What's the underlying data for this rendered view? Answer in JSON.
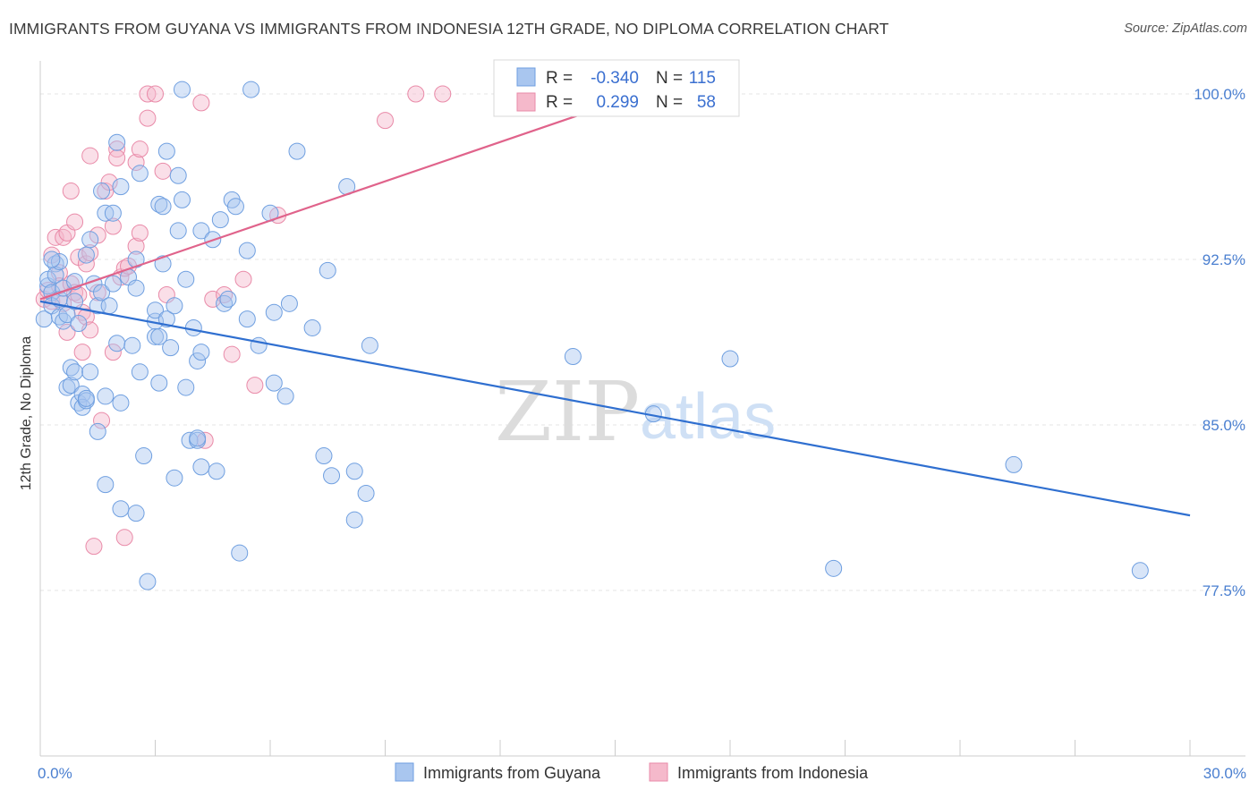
{
  "header": {
    "title": "IMMIGRANTS FROM GUYANA VS IMMIGRANTS FROM INDONESIA 12TH GRADE, NO DIPLOMA CORRELATION CHART",
    "source": "Source: ZipAtlas.com"
  },
  "watermark": {
    "zip": "ZIP",
    "atlas": "atlas"
  },
  "colors": {
    "blue_fill": "#a9c6ef",
    "blue_stroke": "#6f9fe0",
    "blue_line": "#2f6fd0",
    "pink_fill": "#f5b9cb",
    "pink_stroke": "#e98aa8",
    "pink_line": "#e0638b",
    "grid": "#e5e5e5",
    "axis_text": "#4a7fd0"
  },
  "legend": {
    "rows": [
      {
        "r_label": "R =",
        "r_value": "-0.340",
        "n_label": "N =",
        "n_value": "115"
      },
      {
        "r_label": "R =",
        "r_value": "0.299",
        "n_label": "N =",
        "n_value": "58"
      }
    ]
  },
  "bottom_legend": {
    "items": [
      {
        "label": "Immigrants from Guyana"
      },
      {
        "label": "Immigrants from Indonesia"
      }
    ]
  },
  "chart_data": {
    "type": "scatter",
    "title": "IMMIGRANTS FROM GUYANA VS IMMIGRANTS FROM INDONESIA 12TH GRADE, NO DIPLOMA CORRELATION CHART",
    "xlabel": "",
    "ylabel": "12th Grade, No Diploma",
    "xlim": [
      0,
      30
    ],
    "ylim": [
      70.0,
      101.5
    ],
    "x_tick_labels": [
      "0.0%",
      "30.0%"
    ],
    "x_ticks": [
      0,
      3,
      6,
      9,
      12,
      15,
      18,
      21,
      24,
      27,
      30
    ],
    "y_ticks": [
      77.5,
      85.0,
      92.5,
      100.0
    ],
    "y_tick_labels": [
      "77.5%",
      "85.0%",
      "92.5%",
      "100.0%"
    ],
    "grid": true,
    "legend_position": "top-center",
    "series": [
      {
        "name": "Immigrants from Guyana",
        "color": "blue",
        "R": -0.34,
        "N": 115,
        "trend": {
          "x": [
            0,
            30
          ],
          "y": [
            90.6,
            80.9
          ]
        },
        "points": [
          [
            0.1,
            89.8
          ],
          [
            0.2,
            91.3
          ],
          [
            0.2,
            91.6
          ],
          [
            0.3,
            91.0
          ],
          [
            0.3,
            90.4
          ],
          [
            0.4,
            92.3
          ],
          [
            0.4,
            91.8
          ],
          [
            0.5,
            92.4
          ],
          [
            0.5,
            90.7
          ],
          [
            0.5,
            89.9
          ],
          [
            0.6,
            89.7
          ],
          [
            0.6,
            91.2
          ],
          [
            0.7,
            90.0
          ],
          [
            0.7,
            86.7
          ],
          [
            0.8,
            86.8
          ],
          [
            0.8,
            87.6
          ],
          [
            0.9,
            87.4
          ],
          [
            0.9,
            91.5
          ],
          [
            1.0,
            86.0
          ],
          [
            1.0,
            89.6
          ],
          [
            1.1,
            86.4
          ],
          [
            1.1,
            85.8
          ],
          [
            1.2,
            86.1
          ],
          [
            1.2,
            92.7
          ],
          [
            1.3,
            93.4
          ],
          [
            1.3,
            87.4
          ],
          [
            1.4,
            91.4
          ],
          [
            1.5,
            90.4
          ],
          [
            1.5,
            84.7
          ],
          [
            1.6,
            91.0
          ],
          [
            1.6,
            95.6
          ],
          [
            1.7,
            94.6
          ],
          [
            1.7,
            86.3
          ],
          [
            1.7,
            82.3
          ],
          [
            1.8,
            90.4
          ],
          [
            1.9,
            94.6
          ],
          [
            1.9,
            91.4
          ],
          [
            2.0,
            97.8
          ],
          [
            2.0,
            88.7
          ],
          [
            2.1,
            81.2
          ],
          [
            2.1,
            86.0
          ],
          [
            2.3,
            91.7
          ],
          [
            2.4,
            88.6
          ],
          [
            2.5,
            91.2
          ],
          [
            2.5,
            92.5
          ],
          [
            2.5,
            81.0
          ],
          [
            2.6,
            96.4
          ],
          [
            2.6,
            87.4
          ],
          [
            2.7,
            83.6
          ],
          [
            2.8,
            77.9
          ],
          [
            3.0,
            89.7
          ],
          [
            3.0,
            89.0
          ],
          [
            3.0,
            90.2
          ],
          [
            3.1,
            86.9
          ],
          [
            3.1,
            95.0
          ],
          [
            3.1,
            89.0
          ],
          [
            3.2,
            92.3
          ],
          [
            3.2,
            94.9
          ],
          [
            3.3,
            89.8
          ],
          [
            3.3,
            97.4
          ],
          [
            3.4,
            88.5
          ],
          [
            3.5,
            90.4
          ],
          [
            3.5,
            82.6
          ],
          [
            3.6,
            96.3
          ],
          [
            3.6,
            93.8
          ],
          [
            3.7,
            95.2
          ],
          [
            3.8,
            91.6
          ],
          [
            3.8,
            86.7
          ],
          [
            3.9,
            84.3
          ],
          [
            4.0,
            89.4
          ],
          [
            4.1,
            87.9
          ],
          [
            4.1,
            84.3
          ],
          [
            4.2,
            88.3
          ],
          [
            4.2,
            83.1
          ],
          [
            4.2,
            93.8
          ],
          [
            4.5,
            93.4
          ],
          [
            4.6,
            82.9
          ],
          [
            4.7,
            94.3
          ],
          [
            4.8,
            90.5
          ],
          [
            4.9,
            90.7
          ],
          [
            5.0,
            95.2
          ],
          [
            5.1,
            94.9
          ],
          [
            5.2,
            79.2
          ],
          [
            5.4,
            92.9
          ],
          [
            5.4,
            89.8
          ],
          [
            5.7,
            88.6
          ],
          [
            6.0,
            94.6
          ],
          [
            6.1,
            86.9
          ],
          [
            6.1,
            90.1
          ],
          [
            6.4,
            86.3
          ],
          [
            6.5,
            90.5
          ],
          [
            6.7,
            97.4
          ],
          [
            7.1,
            89.4
          ],
          [
            7.4,
            83.6
          ],
          [
            7.5,
            92.0
          ],
          [
            7.6,
            82.7
          ],
          [
            8.0,
            95.8
          ],
          [
            8.2,
            80.7
          ],
          [
            8.2,
            82.9
          ],
          [
            8.5,
            81.9
          ],
          [
            8.6,
            88.6
          ],
          [
            13.9,
            88.1
          ],
          [
            16.0,
            85.5
          ],
          [
            18.0,
            88.0
          ],
          [
            20.7,
            78.5
          ],
          [
            25.4,
            83.2
          ],
          [
            28.7,
            78.4
          ],
          [
            0.3,
            92.5
          ],
          [
            0.9,
            90.6
          ],
          [
            2.1,
            95.8
          ],
          [
            3.7,
            100.2
          ],
          [
            5.5,
            100.2
          ],
          [
            1.2,
            86.2
          ],
          [
            4.1,
            84.4
          ]
        ]
      },
      {
        "name": "Immigrants from Indonesia",
        "color": "pink",
        "R": 0.299,
        "N": 58,
        "trend": {
          "x": [
            0,
            15.0
          ],
          "y": [
            90.7,
            99.6
          ]
        },
        "points": [
          [
            0.1,
            90.7
          ],
          [
            0.2,
            91.1
          ],
          [
            0.3,
            92.7
          ],
          [
            0.3,
            90.6
          ],
          [
            0.4,
            93.5
          ],
          [
            0.5,
            91.9
          ],
          [
            0.5,
            91.3
          ],
          [
            0.6,
            93.5
          ],
          [
            0.6,
            90.5
          ],
          [
            0.7,
            93.7
          ],
          [
            0.7,
            89.2
          ],
          [
            0.8,
            91.4
          ],
          [
            0.8,
            95.6
          ],
          [
            0.9,
            94.2
          ],
          [
            0.9,
            91.0
          ],
          [
            1.0,
            90.9
          ],
          [
            1.0,
            92.6
          ],
          [
            1.1,
            90.1
          ],
          [
            1.1,
            88.3
          ],
          [
            1.2,
            92.3
          ],
          [
            1.2,
            89.9
          ],
          [
            1.3,
            92.8
          ],
          [
            1.3,
            89.3
          ],
          [
            1.3,
            97.2
          ],
          [
            1.4,
            79.5
          ],
          [
            1.5,
            91.0
          ],
          [
            1.5,
            93.6
          ],
          [
            1.6,
            85.2
          ],
          [
            1.7,
            95.6
          ],
          [
            1.8,
            96.0
          ],
          [
            1.9,
            88.3
          ],
          [
            1.9,
            94.0
          ],
          [
            2.0,
            97.5
          ],
          [
            2.0,
            97.1
          ],
          [
            2.1,
            91.7
          ],
          [
            2.2,
            92.1
          ],
          [
            2.2,
            79.9
          ],
          [
            2.3,
            92.2
          ],
          [
            2.5,
            96.9
          ],
          [
            2.5,
            93.1
          ],
          [
            2.6,
            93.7
          ],
          [
            2.6,
            97.5
          ],
          [
            2.8,
            98.9
          ],
          [
            2.8,
            100.0
          ],
          [
            3.0,
            100.0
          ],
          [
            3.2,
            96.5
          ],
          [
            3.3,
            90.9
          ],
          [
            4.2,
            99.6
          ],
          [
            4.3,
            84.3
          ],
          [
            4.5,
            90.7
          ],
          [
            4.8,
            90.9
          ],
          [
            5.0,
            88.2
          ],
          [
            5.3,
            91.6
          ],
          [
            5.6,
            86.8
          ],
          [
            6.2,
            94.5
          ],
          [
            9.0,
            98.8
          ],
          [
            9.8,
            100.0
          ],
          [
            10.5,
            100.0
          ]
        ]
      }
    ]
  }
}
